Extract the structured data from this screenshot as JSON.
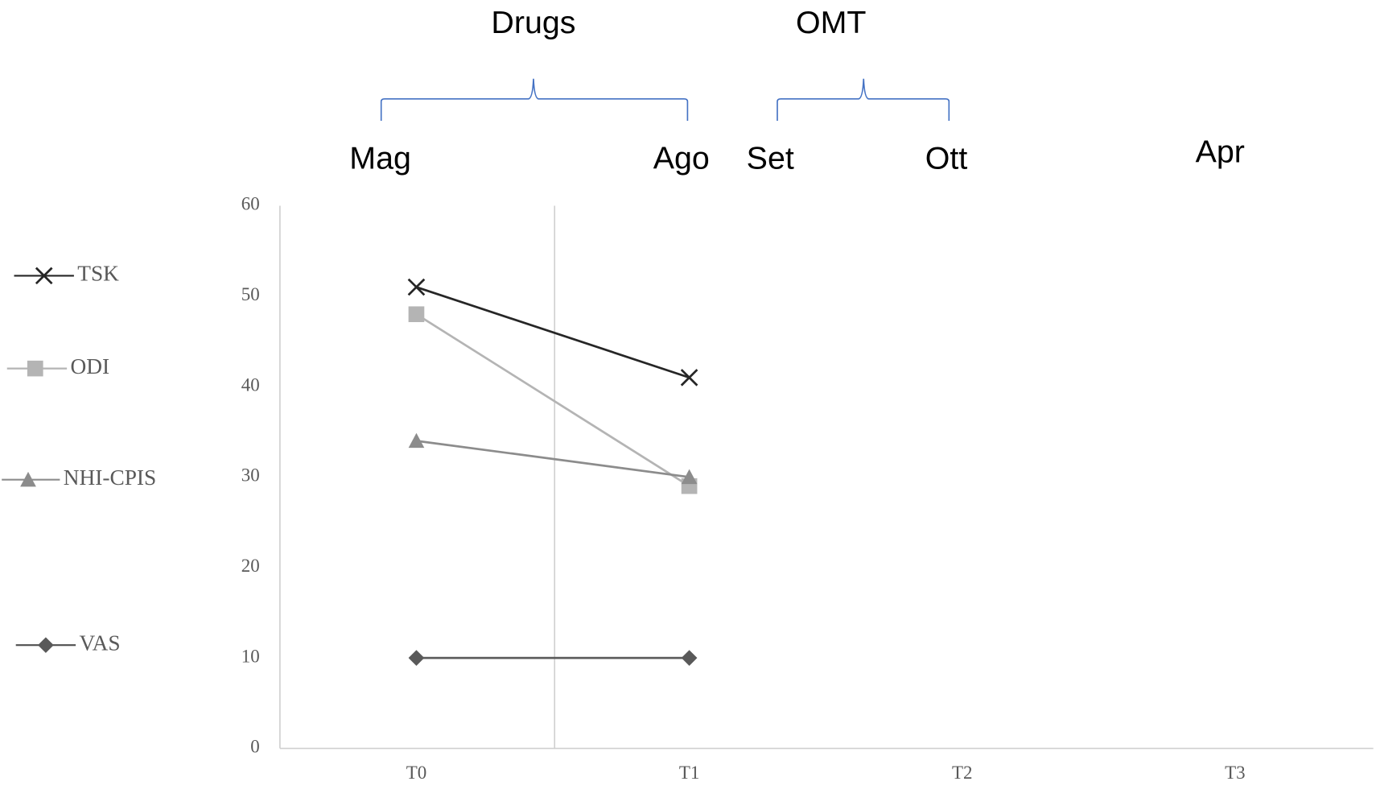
{
  "chart_data": {
    "type": "line",
    "annotations": [
      "Drugs",
      "OMT",
      "Mag",
      "Ago",
      "Set",
      "Ott",
      "Apr"
    ],
    "categories": [
      "T0",
      "T1",
      "T2",
      "T3"
    ],
    "series": [
      {
        "name": "TSK",
        "color": "#262626",
        "marker": "x",
        "values": [
          51,
          41,
          null,
          null
        ]
      },
      {
        "name": "ODI",
        "color": "#b4b4b4",
        "marker": "square",
        "values": [
          48,
          29,
          null,
          null
        ]
      },
      {
        "name": "NHI-CPIS",
        "color": "#8c8c8c",
        "marker": "triangle",
        "values": [
          34,
          30,
          null,
          null
        ]
      },
      {
        "name": "VAS",
        "color": "#595959",
        "marker": "diamond",
        "values": [
          10,
          10,
          null,
          null
        ]
      }
    ],
    "ylim": [
      0,
      60
    ],
    "yticks": [
      0,
      10,
      20,
      30,
      40,
      50,
      60
    ],
    "grid": false
  }
}
